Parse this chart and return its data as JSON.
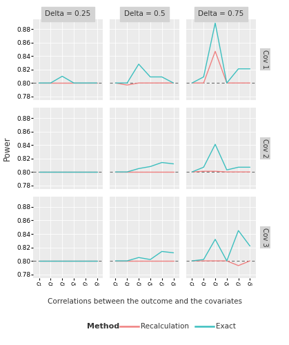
{
  "col_labels": [
    "Delta = 0.25",
    "Delta = 0.5",
    "Delta = 0.75"
  ],
  "row_labels": [
    "Cov 1",
    "Cov 2",
    "Cov 3"
  ],
  "x_labels": [
    "c₁",
    "c₂",
    "c₃",
    "c₄",
    "c₅",
    "c₆"
  ],
  "xlabel": "Correlations between the outcome and the covariates",
  "ylabel": "Power",
  "target_power": 0.8,
  "color_recalc": "#F08080",
  "color_exact": "#3BBFBF",
  "background_panel": "#EBEBEB",
  "background_strip": "#D3D3D3",
  "ylim": [
    0.775,
    0.895
  ],
  "yticks": [
    0.78,
    0.8,
    0.82,
    0.84,
    0.86,
    0.88
  ],
  "data": {
    "recalc": [
      [
        [
          0.8,
          0.8,
          0.8,
          0.8,
          0.8,
          0.8
        ],
        [
          0.8,
          0.797,
          0.8,
          0.8,
          0.8,
          0.8
        ],
        [
          0.8,
          0.8,
          0.847,
          0.8,
          0.8,
          0.8
        ]
      ],
      [
        [
          0.8,
          0.8,
          0.8,
          0.8,
          0.8,
          0.8
        ],
        [
          0.8,
          0.8,
          0.8,
          0.8,
          0.8,
          0.8
        ],
        [
          0.8,
          0.801,
          0.801,
          0.8,
          0.8,
          0.8
        ]
      ],
      [
        [
          0.8,
          0.8,
          0.8,
          0.8,
          0.8,
          0.8
        ],
        [
          0.8,
          0.8,
          0.8,
          0.8,
          0.8,
          0.8
        ],
        [
          0.8,
          0.8,
          0.8,
          0.8,
          0.793,
          0.8
        ]
      ]
    ],
    "exact": [
      [
        [
          0.8,
          0.8,
          0.81,
          0.8,
          0.8,
          0.8
        ],
        [
          0.8,
          0.8,
          0.828,
          0.809,
          0.809,
          0.8
        ],
        [
          0.8,
          0.809,
          0.889,
          0.8,
          0.821,
          0.821
        ]
      ],
      [
        [
          0.8,
          0.8,
          0.8,
          0.8,
          0.8,
          0.8
        ],
        [
          0.8,
          0.8,
          0.805,
          0.808,
          0.814,
          0.812
        ],
        [
          0.8,
          0.807,
          0.841,
          0.803,
          0.807,
          0.807
        ]
      ],
      [
        [
          0.8,
          0.8,
          0.8,
          0.8,
          0.8,
          0.8
        ],
        [
          0.8,
          0.8,
          0.805,
          0.802,
          0.814,
          0.812
        ],
        [
          0.8,
          0.802,
          0.832,
          0.8,
          0.845,
          0.822
        ]
      ]
    ]
  }
}
